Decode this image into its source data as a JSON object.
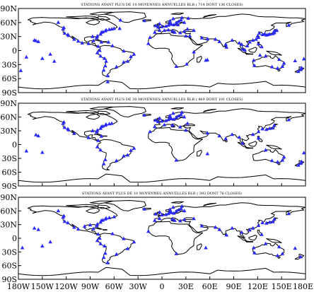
{
  "panels": [
    {
      "title": "STATIONS AYANT PLUS DE 10 MOYENNES ANNUELLES RLR ( 714 DONT 136 CLOSES)",
      "station_marker": "blue-triangle",
      "stations": [
        [
          -170,
          -14
        ],
        [
          -158,
          21
        ],
        [
          -160,
          22
        ],
        [
          -155,
          19
        ],
        [
          -150,
          -17
        ],
        [
          -140,
          -8
        ],
        [
          -135,
          -23
        ],
        [
          -130,
          60
        ],
        [
          -123,
          49
        ],
        [
          -124,
          46
        ],
        [
          -122,
          37
        ],
        [
          -118,
          34
        ],
        [
          -117,
          32
        ],
        [
          -110,
          24
        ],
        [
          -105,
          20
        ],
        [
          -100,
          16
        ],
        [
          -92,
          15
        ],
        [
          -87,
          30
        ],
        [
          -82,
          27
        ],
        [
          -81,
          31
        ],
        [
          -77,
          35
        ],
        [
          -76,
          39
        ],
        [
          -74,
          40
        ],
        [
          -71,
          42
        ],
        [
          -70,
          44
        ],
        [
          -66,
          45
        ],
        [
          -63,
          46
        ],
        [
          -60,
          47
        ],
        [
          -53,
          47
        ],
        [
          -80,
          9
        ],
        [
          -78,
          0
        ],
        [
          -81,
          -5
        ],
        [
          -77,
          -12
        ],
        [
          -72,
          -17
        ],
        [
          -70,
          -23
        ],
        [
          -71,
          -33
        ],
        [
          -73,
          -42
        ],
        [
          -68,
          -54
        ],
        [
          -57,
          -35
        ],
        [
          -48,
          -25
        ],
        [
          -43,
          -23
        ],
        [
          -39,
          -13
        ],
        [
          -35,
          -8
        ],
        [
          -48,
          -1
        ],
        [
          -62,
          10
        ],
        [
          -67,
          18
        ],
        [
          -76,
          18
        ],
        [
          -86,
          21
        ],
        [
          -52,
          65
        ],
        [
          -22,
          64
        ],
        [
          -15,
          28
        ],
        [
          -17,
          15
        ],
        [
          -8,
          53
        ],
        [
          -3,
          57
        ],
        [
          -5,
          50
        ],
        [
          0,
          51
        ],
        [
          5,
          52
        ],
        [
          8,
          54
        ],
        [
          10,
          57
        ],
        [
          12,
          56
        ],
        [
          15,
          55
        ],
        [
          18,
          59
        ],
        [
          21,
          62
        ],
        [
          24,
          65
        ],
        [
          28,
          60
        ],
        [
          20,
          55
        ],
        [
          10,
          63
        ],
        [
          14,
          68
        ],
        [
          25,
          70
        ],
        [
          33,
          69
        ],
        [
          -9,
          39
        ],
        [
          -3,
          43
        ],
        [
          3,
          43
        ],
        [
          8,
          44
        ],
        [
          13,
          42
        ],
        [
          16,
          39
        ],
        [
          23,
          38
        ],
        [
          28,
          41
        ],
        [
          32,
          46
        ],
        [
          40,
          43
        ],
        [
          35,
          31
        ],
        [
          30,
          31
        ],
        [
          50,
          27
        ],
        [
          57,
          25
        ],
        [
          67,
          24
        ],
        [
          72,
          19
        ],
        [
          80,
          13
        ],
        [
          81,
          7
        ],
        [
          88,
          22
        ],
        [
          97,
          16
        ],
        [
          100,
          13
        ],
        [
          101,
          3
        ],
        [
          104,
          1
        ],
        [
          107,
          10
        ],
        [
          110,
          18
        ],
        [
          114,
          22
        ],
        [
          118,
          24
        ],
        [
          121,
          28
        ],
        [
          120,
          31
        ],
        [
          122,
          37
        ],
        [
          126,
          34
        ],
        [
          129,
          35
        ],
        [
          131,
          33
        ],
        [
          133,
          34
        ],
        [
          135,
          35
        ],
        [
          139,
          36
        ],
        [
          141,
          38
        ],
        [
          141,
          42
        ],
        [
          144,
          43
        ],
        [
          121,
          14
        ],
        [
          125,
          8
        ],
        [
          123,
          -10
        ],
        [
          115,
          -21
        ],
        [
          116,
          -32
        ],
        [
          130,
          -12
        ],
        [
          138,
          -35
        ],
        [
          145,
          -38
        ],
        [
          151,
          -34
        ],
        [
          153,
          -27
        ],
        [
          147,
          -19
        ],
        [
          175,
          -37
        ],
        [
          174,
          -41
        ],
        [
          171,
          -45
        ],
        [
          167,
          -22
        ],
        [
          178,
          -18
        ],
        [
          159,
          54
        ],
        [
          -177,
          -43
        ],
        [
          -68,
          -67
        ],
        [
          18,
          -34
        ],
        [
          31,
          -29
        ],
        [
          40,
          -3
        ],
        [
          55,
          -21
        ],
        [
          57,
          -20
        ]
      ]
    },
    {
      "title": "STATIONS AYANT PLUS DE 30 MOYENNES ANNUELLES RLR ( 469 DONT 101 CLOSES)",
      "station_marker": "blue-triangle",
      "stations": [
        [
          -170,
          -14
        ],
        [
          -158,
          21
        ],
        [
          -155,
          19
        ],
        [
          -150,
          -17
        ],
        [
          -123,
          49
        ],
        [
          -124,
          46
        ],
        [
          -122,
          37
        ],
        [
          -118,
          34
        ],
        [
          -117,
          32
        ],
        [
          -110,
          24
        ],
        [
          -92,
          15
        ],
        [
          -87,
          30
        ],
        [
          -82,
          27
        ],
        [
          -81,
          31
        ],
        [
          -77,
          35
        ],
        [
          -76,
          39
        ],
        [
          -74,
          40
        ],
        [
          -71,
          42
        ],
        [
          -70,
          44
        ],
        [
          -66,
          45
        ],
        [
          -63,
          46
        ],
        [
          -80,
          9
        ],
        [
          -81,
          -5
        ],
        [
          -77,
          -12
        ],
        [
          -71,
          -33
        ],
        [
          -73,
          -42
        ],
        [
          -57,
          -35
        ],
        [
          -48,
          -25
        ],
        [
          -43,
          -23
        ],
        [
          -39,
          -13
        ],
        [
          -35,
          -8
        ],
        [
          -76,
          18
        ],
        [
          -22,
          64
        ],
        [
          -15,
          28
        ],
        [
          -8,
          53
        ],
        [
          -3,
          57
        ],
        [
          -5,
          50
        ],
        [
          0,
          51
        ],
        [
          5,
          52
        ],
        [
          8,
          54
        ],
        [
          10,
          57
        ],
        [
          12,
          56
        ],
        [
          15,
          55
        ],
        [
          18,
          59
        ],
        [
          21,
          62
        ],
        [
          24,
          65
        ],
        [
          28,
          60
        ],
        [
          10,
          63
        ],
        [
          14,
          68
        ],
        [
          25,
          70
        ],
        [
          -9,
          39
        ],
        [
          3,
          43
        ],
        [
          13,
          42
        ],
        [
          23,
          38
        ],
        [
          32,
          46
        ],
        [
          30,
          31
        ],
        [
          57,
          25
        ],
        [
          72,
          19
        ],
        [
          80,
          13
        ],
        [
          88,
          22
        ],
        [
          97,
          16
        ],
        [
          101,
          3
        ],
        [
          114,
          22
        ],
        [
          121,
          28
        ],
        [
          126,
          34
        ],
        [
          131,
          33
        ],
        [
          135,
          35
        ],
        [
          139,
          36
        ],
        [
          141,
          42
        ],
        [
          121,
          14
        ],
        [
          130,
          -12
        ],
        [
          138,
          -35
        ],
        [
          145,
          -38
        ],
        [
          151,
          -34
        ],
        [
          153,
          -27
        ],
        [
          175,
          -37
        ],
        [
          174,
          -41
        ],
        [
          171,
          -45
        ],
        [
          178,
          -18
        ],
        [
          159,
          54
        ],
        [
          18,
          -34
        ],
        [
          57,
          -20
        ]
      ]
    },
    {
      "title": "STATIONS AYANT PLUS DE 10 MOYENNES ANNUELLES RLR ( 392 DONT 76 CLOSES)",
      "station_marker": "blue-triangle",
      "stations": [
        [
          -175,
          -21
        ],
        [
          -160,
          22
        ],
        [
          -155,
          19
        ],
        [
          -150,
          -17
        ],
        [
          -140,
          -8
        ],
        [
          -130,
          60
        ],
        [
          -123,
          49
        ],
        [
          -124,
          46
        ],
        [
          -122,
          37
        ],
        [
          -118,
          34
        ],
        [
          -110,
          24
        ],
        [
          -105,
          20
        ],
        [
          -97,
          26
        ],
        [
          -90,
          29
        ],
        [
          -82,
          27
        ],
        [
          -81,
          31
        ],
        [
          -77,
          35
        ],
        [
          -76,
          39
        ],
        [
          -74,
          40
        ],
        [
          -71,
          42
        ],
        [
          -70,
          44
        ],
        [
          -66,
          45
        ],
        [
          -60,
          47
        ],
        [
          -80,
          9
        ],
        [
          -78,
          0
        ],
        [
          -81,
          -5
        ],
        [
          -77,
          -12
        ],
        [
          -72,
          -17
        ],
        [
          -71,
          -33
        ],
        [
          -73,
          -42
        ],
        [
          -68,
          -54
        ],
        [
          -57,
          -35
        ],
        [
          -43,
          -23
        ],
        [
          -35,
          -8
        ],
        [
          -48,
          -1
        ],
        [
          -62,
          10
        ],
        [
          -86,
          21
        ],
        [
          -22,
          64
        ],
        [
          -17,
          15
        ],
        [
          -8,
          53
        ],
        [
          -3,
          57
        ],
        [
          0,
          51
        ],
        [
          5,
          52
        ],
        [
          8,
          54
        ],
        [
          10,
          57
        ],
        [
          12,
          56
        ],
        [
          15,
          55
        ],
        [
          18,
          59
        ],
        [
          21,
          62
        ],
        [
          24,
          65
        ],
        [
          28,
          60
        ],
        [
          10,
          63
        ],
        [
          14,
          68
        ],
        [
          25,
          70
        ],
        [
          -9,
          39
        ],
        [
          -3,
          43
        ],
        [
          13,
          42
        ],
        [
          16,
          39
        ],
        [
          23,
          38
        ],
        [
          28,
          41
        ],
        [
          40,
          43
        ],
        [
          50,
          27
        ],
        [
          67,
          24
        ],
        [
          72,
          19
        ],
        [
          81,
          7
        ],
        [
          88,
          22
        ],
        [
          100,
          13
        ],
        [
          110,
          18
        ],
        [
          114,
          22
        ],
        [
          121,
          28
        ],
        [
          126,
          34
        ],
        [
          131,
          33
        ],
        [
          135,
          35
        ],
        [
          139,
          36
        ],
        [
          141,
          42
        ],
        [
          125,
          8
        ],
        [
          115,
          -21
        ],
        [
          116,
          -32
        ],
        [
          130,
          -12
        ],
        [
          145,
          -38
        ],
        [
          151,
          -34
        ],
        [
          147,
          -19
        ],
        [
          174,
          -41
        ],
        [
          167,
          -22
        ],
        [
          159,
          54
        ],
        [
          18,
          -34
        ],
        [
          55,
          -21
        ]
      ]
    }
  ],
  "latitude_labels": [
    "90N",
    "60N",
    "30N",
    "0",
    "30S",
    "60S",
    "90S"
  ],
  "longitude_labels": [
    "180W",
    "150W",
    "120W",
    "90W",
    "60W",
    "30W",
    "0",
    "30E",
    "60E",
    "90E",
    "120E",
    "150E",
    "180E"
  ],
  "colors": {
    "station": "#2a2aff",
    "coastline": "#000000",
    "background": "#ffffff"
  }
}
